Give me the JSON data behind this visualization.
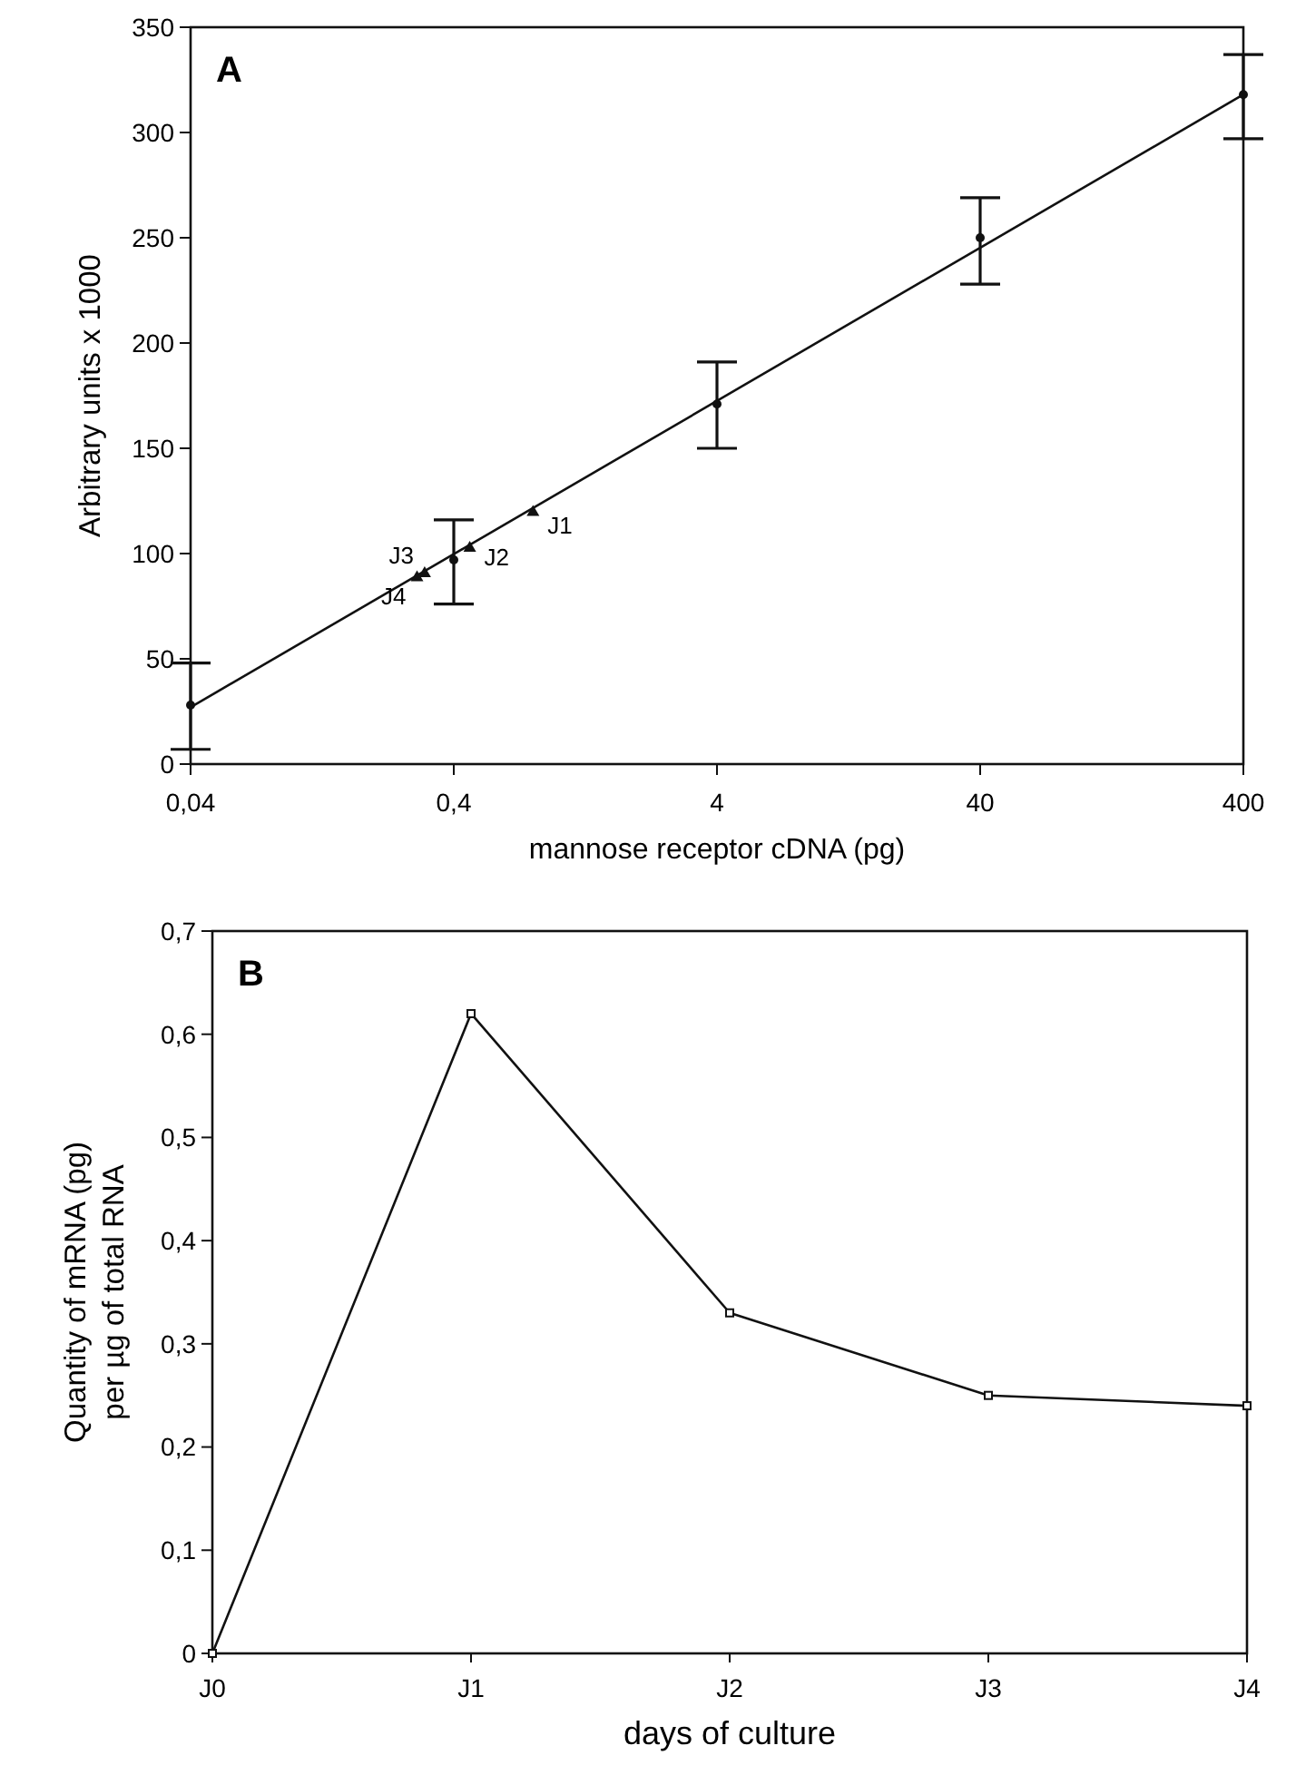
{
  "chart_data": [
    {
      "type": "scatter",
      "title": "A",
      "xlabel": "mannose receptor cDNA (pg)",
      "ylabel": "Arbitrary units x 1000",
      "log": "x",
      "xlim": [
        0.04,
        400
      ],
      "ylim": [
        0,
        350
      ],
      "xticks": [
        {
          "value": 0.04,
          "label": "0,04"
        },
        {
          "value": 0.4,
          "label": "0,4"
        },
        4,
        40,
        400
      ],
      "yticks": [
        0,
        50,
        100,
        150,
        200,
        250,
        300,
        350
      ],
      "series": [
        {
          "type": "line",
          "color": "#111111",
          "x": [
            0.04,
            400
          ],
          "values": [
            27,
            318
          ],
          "marker": "none",
          "line_style": "solid"
        },
        {
          "color": "#111111",
          "marker": "circle",
          "x": [
            0.04,
            0.4,
            4,
            40,
            400
          ],
          "values": [
            28,
            97,
            171,
            250,
            318
          ],
          "errors": [
            [
              7,
              48
            ],
            [
              76,
              116
            ],
            [
              150,
              191
            ],
            [
              228,
              269
            ],
            [
              297,
              337
            ]
          ]
        },
        {
          "color": "#111111",
          "marker": "triangle",
          "x": [
            0.8,
            0.46,
            0.31,
            0.29
          ],
          "values": [
            120,
            103,
            91,
            89
          ]
        }
      ],
      "annotations": [
        {
          "text": "J1",
          "x": 0.8,
          "y": 120
        },
        {
          "text": "J2",
          "x": 0.46,
          "y": 103
        },
        {
          "text": "J3",
          "x": 0.31,
          "y": 91
        },
        {
          "text": "J4",
          "x": 0.29,
          "y": 89
        }
      ]
    },
    {
      "type": "line",
      "title": "B",
      "xlabel": "days of culture",
      "ylabel": "Quantity of mRNA (pg)\nper µg of total RNA",
      "categories": [
        "J0",
        "J1",
        "J2",
        "J3",
        "J4"
      ],
      "ylim": [
        0,
        0.7
      ],
      "yticks": [
        0,
        {
          "value": 0.1,
          "label": "0,1"
        },
        {
          "value": 0.2,
          "label": "0,2"
        },
        {
          "value": 0.3,
          "label": "0,3"
        },
        {
          "value": 0.4,
          "label": "0,4"
        },
        {
          "value": 0.5,
          "label": "0,5"
        },
        {
          "value": 0.6,
          "label": "0,6"
        },
        {
          "value": 0.7,
          "label": "0,7"
        }
      ],
      "series": [
        {
          "color": "#111111",
          "marker": "square",
          "values": [
            0,
            0.62,
            0.33,
            0.25,
            0.24
          ]
        }
      ]
    }
  ]
}
